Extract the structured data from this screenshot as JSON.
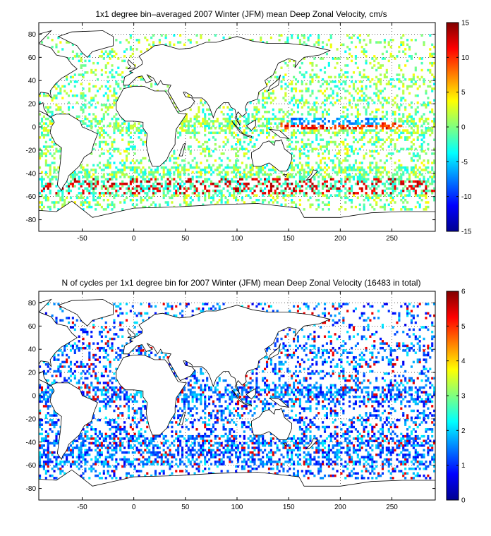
{
  "chart_data": [
    {
      "type": "heatmap",
      "title": "1x1 degree bin–averaged 2007 Winter (JFM) mean Deep Zonal Velocity, cm/s",
      "x_ticks": [
        -50,
        0,
        50,
        100,
        150,
        200,
        250
      ],
      "y_ticks": [
        -80,
        -60,
        -40,
        -20,
        0,
        20,
        40,
        60,
        80
      ],
      "x_tick_labels": [
        "-50",
        "0",
        "50",
        "100",
        "150",
        "200",
        "250"
      ],
      "y_tick_labels": [
        "-80",
        "-60",
        "-40",
        "-20",
        "0",
        "20",
        "40",
        "60",
        "80"
      ],
      "xlim": [
        -92,
        292
      ],
      "ylim": [
        -90,
        90
      ],
      "grid": true,
      "colorbar": {
        "range": [
          -15,
          15
        ],
        "ticks": [
          -15,
          -10,
          -5,
          0,
          5,
          10,
          15
        ],
        "tick_labels": [
          "-15",
          "-10",
          "-5",
          "0",
          "5",
          "10",
          "15"
        ],
        "colormap": "jet"
      }
    },
    {
      "type": "heatmap",
      "title": "N of cycles per 1x1 degree bin for 2007 Winter (JFM) mean Deep Zonal Velocity (16483 in total)",
      "x_ticks": [
        -50,
        0,
        50,
        100,
        150,
        200,
        250
      ],
      "y_ticks": [
        -80,
        -60,
        -40,
        -20,
        0,
        20,
        40,
        60,
        80
      ],
      "x_tick_labels": [
        "-50",
        "0",
        "50",
        "100",
        "150",
        "200",
        "250"
      ],
      "y_tick_labels": [
        "-80",
        "-60",
        "-40",
        "-20",
        "0",
        "20",
        "40",
        "60",
        "80"
      ],
      "xlim": [
        -92,
        292
      ],
      "ylim": [
        -90,
        90
      ],
      "grid": true,
      "colorbar": {
        "range": [
          0,
          6
        ],
        "ticks": [
          0,
          1,
          2,
          3,
          4,
          5,
          6
        ],
        "tick_labels": [
          "0",
          "1",
          "2",
          "3",
          "4",
          "5",
          "6"
        ],
        "colormap": "jet"
      }
    }
  ]
}
